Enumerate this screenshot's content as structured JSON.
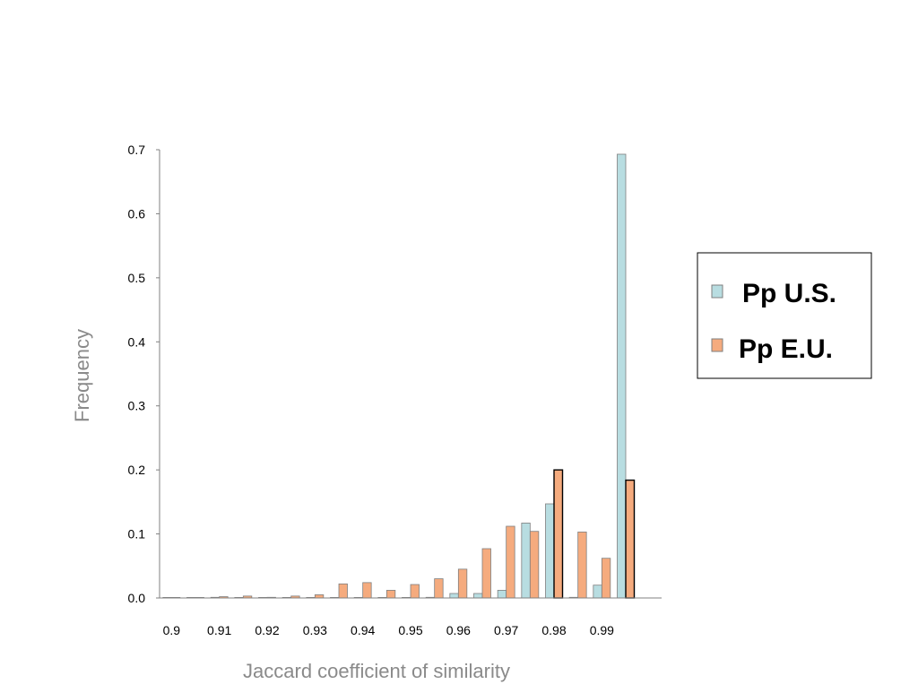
{
  "chart_data": {
    "type": "bar",
    "title": "",
    "xlabel": "Jaccard coefficient of similarity",
    "ylabel": "Frequency",
    "ylim": [
      0,
      0.7
    ],
    "yticks": [
      "0.0",
      "0.1",
      "0.2",
      "0.3",
      "0.4",
      "0.5",
      "0.6",
      "0.7"
    ],
    "xticks": [
      "0.9",
      "0.91",
      "0.92",
      "0.93",
      "0.94",
      "0.95",
      "0.96",
      "0.97",
      "0.98",
      "0.99"
    ],
    "bin_width": 0.005,
    "categories": [
      "0.9",
      "0.905",
      "0.91",
      "0.915",
      "0.92",
      "0.925",
      "0.93",
      "0.935",
      "0.94",
      "0.945",
      "0.95",
      "0.955",
      "0.96",
      "0.965",
      "0.97",
      "0.975",
      "0.98",
      "0.985",
      "0.99",
      "0.995"
    ],
    "series": [
      {
        "name": "Pp U.S.",
        "color": "#b8dde1",
        "values": [
          0.0,
          0.0,
          0.001,
          0.0,
          0.0,
          0.0,
          0.0,
          0.0,
          0.0,
          0.0,
          0.0,
          0.001,
          0.007,
          0.007,
          0.012,
          0.117,
          0.147,
          0.001,
          0.02,
          0.693
        ]
      },
      {
        "name": "Pp E.U.",
        "color": "#f5ab7e",
        "values": [
          0.0,
          0.0,
          0.002,
          0.003,
          0.001,
          0.003,
          0.005,
          0.022,
          0.024,
          0.012,
          0.021,
          0.03,
          0.045,
          0.077,
          0.112,
          0.104,
          0.2,
          0.103,
          0.062,
          0.184
        ]
      }
    ],
    "highlighted_bars": [
      [
        1,
        16
      ],
      [
        1,
        19
      ]
    ],
    "grid": false,
    "legend_position": "right"
  }
}
